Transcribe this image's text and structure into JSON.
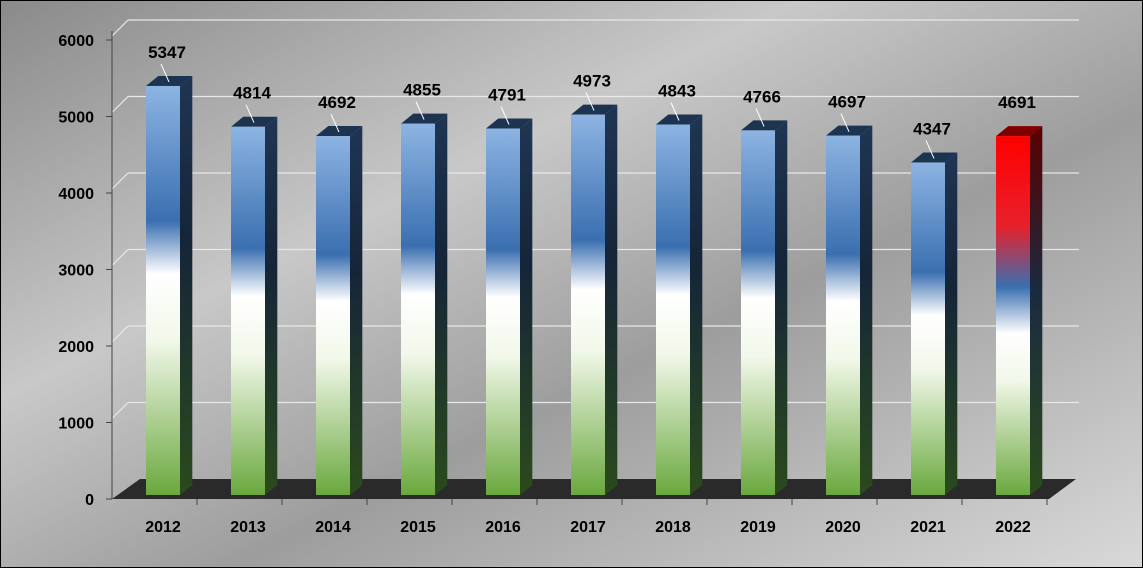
{
  "chart_data": {
    "type": "bar",
    "title": "",
    "xlabel": "",
    "ylabel": "",
    "categories": [
      "2012",
      "2013",
      "2014",
      "2015",
      "2016",
      "2017",
      "2018",
      "2019",
      "2020",
      "2021",
      "2022"
    ],
    "values": [
      5347,
      4814,
      4692,
      4855,
      4791,
      4973,
      4843,
      4766,
      4697,
      4347,
      4691
    ],
    "ylim": [
      0,
      6000
    ],
    "yticks": [
      0,
      1000,
      2000,
      3000,
      4000,
      5000,
      6000
    ],
    "grid": true,
    "legend": "none",
    "colors": {
      "bar_top": "#8db4e2",
      "bar_mid": "#3a6fb0",
      "bar_white": "#ffffff",
      "bar_bottom": "#6aa83e",
      "highlight_top": "#ff0000",
      "highlight_dark": "#7f0000",
      "floor": "#2a2a2a",
      "background": "#b9b9b9",
      "gridline": "#e8e8e8"
    },
    "highlight_index": 10
  }
}
